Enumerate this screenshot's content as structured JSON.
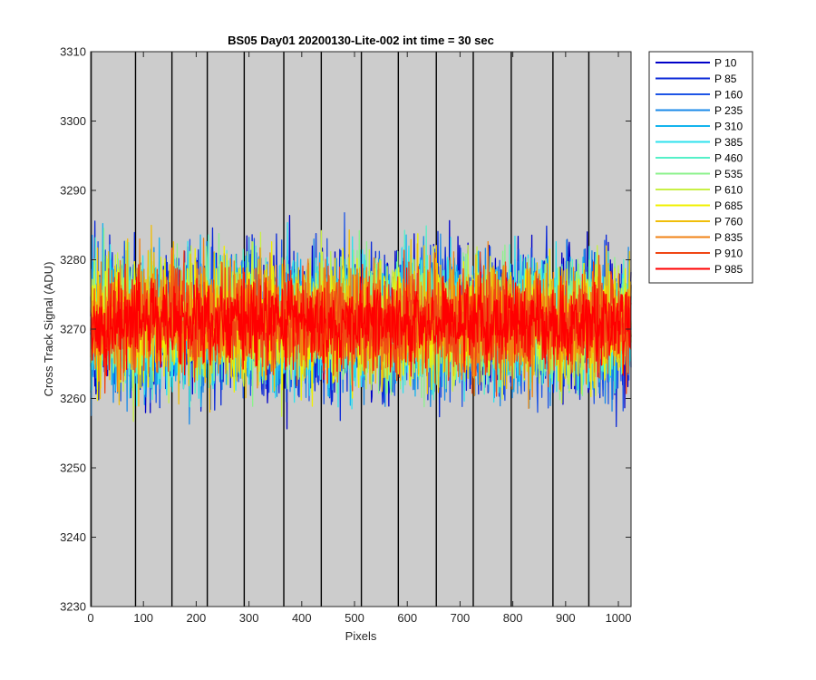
{
  "chart_data": {
    "type": "line",
    "title": "BS05 Day01 20200130-Lite-002 int time = 30 sec",
    "xlabel": "Pixels",
    "ylabel": "Cross Track Signal (ADU)",
    "xlim": [
      0,
      1024
    ],
    "ylim": [
      3230,
      3310
    ],
    "xticks": [
      0,
      100,
      200,
      300,
      400,
      500,
      600,
      700,
      800,
      900,
      1000
    ],
    "yticks": [
      3230,
      3240,
      3250,
      3260,
      3270,
      3280,
      3290,
      3300,
      3310
    ],
    "vertical_lines_x": [
      1,
      85,
      154,
      221,
      291,
      366,
      437,
      513,
      583,
      655,
      725,
      797,
      876,
      944
    ],
    "background": "#cccccc",
    "grid": false,
    "legend_position": "outside-right",
    "noise_mean": 3271,
    "series": [
      {
        "name": "P 10",
        "color": "#0000c8",
        "spread": 9
      },
      {
        "name": "P 85",
        "color": "#0a28d8",
        "spread": 9
      },
      {
        "name": "P 160",
        "color": "#1e55e6",
        "spread": 9
      },
      {
        "name": "P 235",
        "color": "#1a8ae8",
        "spread": 9
      },
      {
        "name": "P 310",
        "color": "#14b4ee",
        "spread": 8.5
      },
      {
        "name": "P 385",
        "color": "#2ee2ee",
        "spread": 8.5
      },
      {
        "name": "P 460",
        "color": "#55f0c8",
        "spread": 8
      },
      {
        "name": "P 535",
        "color": "#8cf28c",
        "spread": 8
      },
      {
        "name": "P 610",
        "color": "#c8f046",
        "spread": 8
      },
      {
        "name": "P 685",
        "color": "#f0f000",
        "spread": 7.5
      },
      {
        "name": "P 760",
        "color": "#f0be0a",
        "spread": 7.5
      },
      {
        "name": "P 835",
        "color": "#f08214",
        "spread": 7
      },
      {
        "name": "P 910",
        "color": "#f04614",
        "spread": 6.5
      },
      {
        "name": "P 985",
        "color": "#ff0000",
        "spread": 5.5
      }
    ]
  }
}
